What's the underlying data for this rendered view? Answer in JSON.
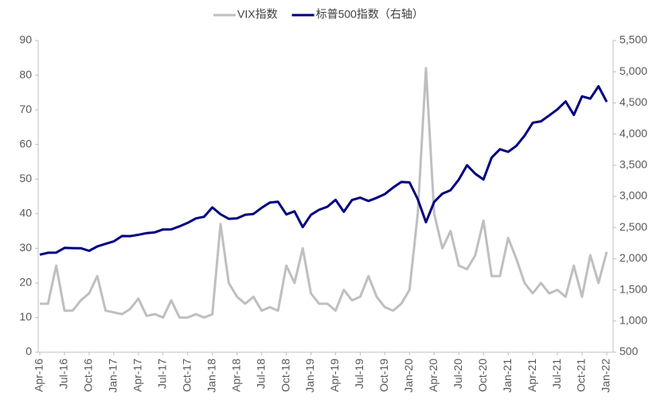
{
  "chart_data": {
    "type": "line",
    "categories": [
      "Apr-16",
      null,
      null,
      "Jul-16",
      null,
      null,
      "Oct-16",
      null,
      null,
      "Jan-17",
      null,
      null,
      "Apr-17",
      null,
      null,
      "Jul-17",
      null,
      null,
      "Oct-17",
      null,
      null,
      "Jan-18",
      null,
      null,
      "Apr-18",
      null,
      null,
      "Jul-18",
      null,
      null,
      "Oct-18",
      null,
      null,
      "Jan-19",
      null,
      null,
      "Apr-19",
      null,
      null,
      "Jul-19",
      null,
      null,
      "Oct-19",
      null,
      null,
      "Jan-20",
      null,
      null,
      "Apr-20",
      null,
      null,
      "Jul-20",
      null,
      null,
      "Oct-20",
      null,
      null,
      "Jan-21",
      null,
      null,
      "Apr-21",
      null,
      null,
      "Jul-21",
      null,
      null,
      "Oct-21",
      null,
      null,
      "Jan-22"
    ],
    "series": [
      {
        "name": "VIX指数",
        "color": "#bfbfbf",
        "values": [
          14,
          14,
          25,
          12,
          12,
          15,
          17,
          22,
          12,
          11.5,
          11,
          12.5,
          15.5,
          10.5,
          11,
          10,
          15,
          10,
          10,
          11,
          10,
          11,
          37,
          20,
          16,
          14,
          16,
          12,
          13,
          12,
          25,
          20,
          30,
          17,
          14,
          14,
          12,
          18,
          15,
          16,
          22,
          16,
          13,
          12,
          14,
          18,
          40,
          82,
          40,
          30,
          35,
          25,
          24,
          28,
          38,
          22,
          22,
          33,
          27,
          20,
          17,
          20,
          17,
          18,
          16,
          25,
          16,
          28,
          20,
          29
        ]
      },
      {
        "name": "标普500指数（右轴）",
        "color": "#000080",
        "axis": "y2",
        "values": [
          2065,
          2096,
          2098,
          2173,
          2170,
          2168,
          2126,
          2198,
          2238,
          2278,
          2363,
          2362,
          2384,
          2411,
          2423,
          2470,
          2471,
          2519,
          2575,
          2647,
          2673,
          2823,
          2713,
          2640,
          2648,
          2705,
          2718,
          2816,
          2901,
          2913,
          2711,
          2760,
          2506,
          2704,
          2784,
          2834,
          2945,
          2752,
          2941,
          2980,
          2926,
          2977,
          3037,
          3141,
          3231,
          3225,
          2954,
          2585,
          2912,
          3044,
          3100,
          3271,
          3500,
          3363,
          3270,
          3622,
          3756,
          3714,
          3811,
          3973,
          4181,
          4204,
          4298,
          4395,
          4523,
          4308,
          4605,
          4567,
          4766,
          4516
        ]
      }
    ],
    "ylim": [
      0,
      90
    ],
    "yticks": [
      0,
      10,
      20,
      30,
      40,
      50,
      60,
      70,
      80,
      90
    ],
    "y2lim": [
      500,
      5500
    ],
    "y2ticks": [
      {
        "value": 500,
        "label": "500"
      },
      {
        "value": 1000,
        "label": "1,000"
      },
      {
        "value": 1500,
        "label": "1,500"
      },
      {
        "value": 2000,
        "label": "2,000"
      },
      {
        "value": 2500,
        "label": "2,500"
      },
      {
        "value": 3000,
        "label": "3,000"
      },
      {
        "value": 3500,
        "label": "3,500"
      },
      {
        "value": 4000,
        "label": "4,000"
      },
      {
        "value": 4500,
        "label": "4,500"
      },
      {
        "value": 5000,
        "label": "5,000"
      },
      {
        "value": 5500,
        "label": "5,500"
      }
    ],
    "legend": "top"
  }
}
